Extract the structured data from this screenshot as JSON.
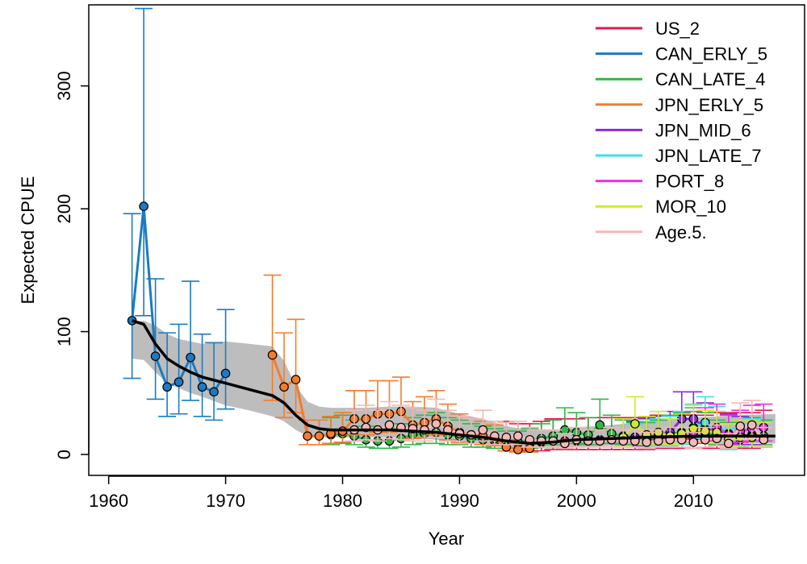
{
  "chart_data": {
    "type": "line",
    "xlabel": "Year",
    "ylabel": "Expected CPUE",
    "xlim": [
      1958.3,
      2019.5
    ],
    "ylim": [
      -17,
      366
    ],
    "xticks": [
      1960,
      1970,
      1980,
      1990,
      2000,
      2010
    ],
    "yticks": [
      0,
      100,
      200,
      300
    ],
    "legend_position": "top-right",
    "series": [
      {
        "name": "US_2",
        "color": "#e31a4b",
        "x": [
          1994,
          1995,
          1996,
          1997,
          1998,
          1999,
          2000,
          2001,
          2002,
          2003,
          2004,
          2005,
          2006,
          2007,
          2008,
          2009,
          2010,
          2011,
          2012,
          2013,
          2014,
          2015,
          2016
        ],
        "y": [
          10,
          9,
          9,
          10,
          11,
          11,
          11,
          12,
          12,
          12,
          12,
          12,
          12,
          13,
          13,
          13,
          13,
          13,
          14,
          14,
          14,
          14,
          15
        ],
        "lower": [
          3,
          3,
          3,
          3,
          4,
          4,
          4,
          4,
          4,
          4,
          4,
          4,
          4,
          5,
          5,
          5,
          5,
          5,
          5,
          5,
          5,
          5,
          6
        ],
        "upper": [
          27,
          25,
          25,
          27,
          29,
          29,
          29,
          30,
          30,
          30,
          30,
          30,
          30,
          32,
          32,
          32,
          32,
          32,
          34,
          34,
          34,
          34,
          36
        ]
      },
      {
        "name": "CAN_ERLY_5",
        "color": "#1a7bc4",
        "x": [
          1962,
          1963,
          1964,
          1965,
          1966,
          1967,
          1968,
          1969,
          1970
        ],
        "y": [
          109,
          202,
          80,
          55,
          59,
          79,
          55,
          51,
          66
        ],
        "lower": [
          62,
          113,
          45,
          31,
          33,
          44,
          31,
          28,
          37
        ],
        "upper": [
          196,
          363,
          143,
          99,
          106,
          141,
          98,
          91,
          118
        ]
      },
      {
        "name": "CAN_LATE_4",
        "color": "#33b54a",
        "x": [
          1979,
          1980,
          1981,
          1982,
          1983,
          1984,
          1985,
          1986,
          1987,
          1988,
          1989,
          1990,
          1991,
          1992,
          1993,
          1994,
          1995,
          1996,
          1997,
          1998,
          1999,
          2000,
          2001,
          2002,
          2003,
          2004,
          2005,
          2006,
          2007,
          2008,
          2009,
          2010,
          2011,
          2012,
          2013,
          2014,
          2015,
          2016
        ],
        "y": [
          16,
          17,
          15,
          12,
          11,
          11,
          13,
          16,
          17,
          18,
          16,
          15,
          13,
          12,
          11,
          10,
          10,
          11,
          13,
          15,
          20,
          18,
          16,
          24,
          17,
          15,
          14,
          14,
          15,
          17,
          18,
          20,
          18,
          15,
          14,
          15,
          16,
          15
        ],
        "lower": [
          8,
          9,
          8,
          6,
          5,
          5,
          6,
          8,
          9,
          9,
          8,
          8,
          6,
          6,
          5,
          5,
          5,
          5,
          6,
          8,
          10,
          9,
          8,
          12,
          9,
          8,
          7,
          7,
          8,
          9,
          9,
          10,
          9,
          8,
          7,
          8,
          8,
          8
        ],
        "upper": [
          30,
          32,
          28,
          23,
          21,
          21,
          25,
          30,
          32,
          34,
          30,
          28,
          25,
          23,
          21,
          19,
          19,
          21,
          25,
          28,
          38,
          34,
          30,
          45,
          32,
          28,
          26,
          26,
          28,
          32,
          34,
          38,
          34,
          28,
          26,
          28,
          30,
          28
        ]
      },
      {
        "name": "JPN_ERLY_5",
        "color": "#f47c2c",
        "x": [
          1974,
          1975,
          1976,
          1977,
          1978,
          1979,
          1980,
          1981,
          1982,
          1983,
          1984,
          1985,
          1986,
          1987,
          1988,
          1989,
          1990,
          1991,
          1992,
          1993,
          1994,
          1995,
          1996
        ],
        "y": [
          81,
          55,
          61,
          15,
          15,
          17,
          19,
          29,
          29,
          33,
          33,
          35,
          24,
          26,
          29,
          23,
          18,
          16,
          15,
          13,
          6,
          4,
          5
        ],
        "lower": [
          44,
          30,
          34,
          8,
          8,
          9,
          10,
          16,
          16,
          18,
          18,
          19,
          13,
          14,
          16,
          12,
          10,
          9,
          8,
          7,
          3,
          2,
          2
        ],
        "upper": [
          146,
          99,
          110,
          28,
          28,
          31,
          34,
          52,
          52,
          60,
          60,
          63,
          43,
          47,
          52,
          41,
          33,
          29,
          27,
          24,
          12,
          9,
          10
        ]
      },
      {
        "name": "JPN_MID_6",
        "color": "#8a2be2",
        "x": [
          2005,
          2006,
          2007,
          2008,
          2009,
          2010,
          2011,
          2012,
          2013,
          2014,
          2015
        ],
        "y": [
          14,
          15,
          16,
          18,
          29,
          29,
          22,
          18,
          17,
          16,
          15
        ],
        "lower": [
          7,
          8,
          8,
          9,
          15,
          15,
          11,
          9,
          9,
          8,
          8
        ],
        "upper": [
          27,
          29,
          31,
          35,
          51,
          51,
          42,
          35,
          33,
          31,
          29
        ]
      },
      {
        "name": "JPN_LATE_7",
        "color": "#40e0e8",
        "x": [
          2005,
          2006,
          2007,
          2008,
          2009,
          2010,
          2011,
          2012,
          2013,
          2014,
          2015,
          2016
        ],
        "y": [
          12,
          13,
          14,
          15,
          17,
          22,
          26,
          20,
          9,
          12,
          14,
          13
        ],
        "lower": [
          6,
          6,
          7,
          7,
          8,
          11,
          13,
          10,
          4,
          6,
          7,
          6
        ],
        "upper": [
          25,
          27,
          29,
          31,
          35,
          41,
          47,
          39,
          21,
          25,
          29,
          27
        ]
      },
      {
        "name": "PORT_8",
        "color": "#ee2ee6",
        "x": [
          2010,
          2011,
          2012,
          2013,
          2014,
          2015,
          2016
        ],
        "y": [
          18,
          20,
          22,
          16,
          19,
          21,
          22
        ],
        "lower": [
          9,
          10,
          11,
          8,
          10,
          11,
          11
        ],
        "upper": [
          35,
          38,
          41,
          32,
          36,
          40,
          41
        ]
      },
      {
        "name": "MOR_10",
        "color": "#cfea2f",
        "x": [
          2004,
          2005,
          2006,
          2007,
          2008,
          2009,
          2010,
          2011,
          2012,
          2013,
          2014,
          2015,
          2016
        ],
        "y": [
          14,
          25,
          16,
          18,
          15,
          17,
          21,
          19,
          18,
          12,
          14,
          14,
          13
        ],
        "lower": [
          7,
          13,
          8,
          9,
          8,
          9,
          11,
          10,
          9,
          6,
          7,
          7,
          7
        ],
        "upper": [
          29,
          47,
          31,
          35,
          29,
          33,
          40,
          36,
          35,
          25,
          28,
          28,
          26
        ]
      },
      {
        "name": "Age.5.",
        "color": "#f4b8b8",
        "x": [
          1981,
          1982,
          1983,
          1984,
          1985,
          1986,
          1987,
          1988,
          1989,
          1990,
          1991,
          1992,
          1993,
          1994,
          1995,
          1996,
          1997,
          1998,
          1999,
          2000,
          2001,
          2002,
          2003,
          2004,
          2005,
          2006,
          2007,
          2008,
          2009,
          2010,
          2011,
          2012,
          2013,
          2014,
          2015,
          2016
        ],
        "y": [
          20,
          22,
          20,
          24,
          22,
          21,
          20,
          25,
          20,
          17,
          16,
          20,
          15,
          14,
          15,
          12,
          11,
          11,
          9,
          12,
          11,
          11,
          12,
          11,
          11,
          10,
          11,
          12,
          12,
          10,
          12,
          13,
          9,
          23,
          24,
          12
        ],
        "lower": [
          11,
          12,
          11,
          13,
          12,
          11,
          11,
          14,
          11,
          9,
          9,
          11,
          8,
          8,
          8,
          6,
          6,
          6,
          5,
          6,
          6,
          6,
          6,
          6,
          6,
          5,
          6,
          6,
          6,
          5,
          6,
          7,
          5,
          12,
          13,
          6
        ],
        "upper": [
          36,
          40,
          36,
          43,
          40,
          38,
          36,
          45,
          36,
          31,
          29,
          36,
          27,
          26,
          27,
          22,
          20,
          20,
          17,
          22,
          20,
          20,
          22,
          20,
          20,
          18,
          20,
          22,
          22,
          18,
          22,
          24,
          17,
          42,
          44,
          22
        ]
      }
    ],
    "smoother": {
      "color": "#000000",
      "x": [
        1962,
        1963,
        1964,
        1965,
        1966,
        1967,
        1968,
        1970,
        1972,
        1974,
        1975,
        1976,
        1977,
        1978,
        1979,
        1980,
        1982,
        1984,
        1986,
        1988,
        1990,
        1992,
        1994,
        1996,
        1998,
        2000,
        2003,
        2006,
        2010,
        2014,
        2017
      ],
      "y": [
        109,
        106,
        90,
        78,
        72,
        67,
        63,
        58,
        53,
        48,
        42,
        32,
        24,
        21,
        20,
        20,
        20,
        20,
        19,
        18,
        16,
        14,
        11,
        9,
        10,
        12,
        13,
        14,
        15,
        15,
        15
      ],
      "band_lower": [
        78,
        77,
        67,
        58,
        54,
        50,
        47,
        40,
        36,
        31,
        27,
        20,
        15,
        14,
        14,
        14,
        14,
        14,
        13,
        12,
        11,
        9,
        6,
        5,
        5,
        6,
        7,
        8,
        9,
        9,
        9
      ],
      "band_upper": [
        108,
        109,
        105,
        98,
        94,
        92,
        90,
        92,
        90,
        88,
        76,
        56,
        43,
        39,
        38,
        38,
        38,
        39,
        39,
        38,
        33,
        29,
        23,
        20,
        20,
        22,
        24,
        27,
        30,
        32,
        33
      ]
    }
  }
}
